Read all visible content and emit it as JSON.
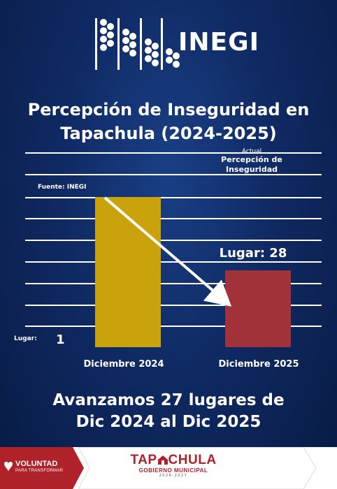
{
  "brand": {
    "logo_text": "INEGI"
  },
  "title": {
    "line1": "Percepción de Inseguridad en",
    "line2": "Tapachula (2024-2025)"
  },
  "chart_data": {
    "type": "bar",
    "categories": [
      "Diciembre 2024",
      "Diciembre 2025"
    ],
    "values": [
      1,
      28
    ],
    "colors": [
      "#c9a20c",
      "#a2323a"
    ],
    "source": "Fuente: INEGI",
    "annotations": {
      "caption_small": "Actual",
      "caption_main": "Percepción de",
      "caption_main2": "Inseguridad",
      "bar2_label": "Lugar: 28",
      "bar1_axis_label": "Lugar:",
      "bar1_value": "1"
    },
    "grid": true,
    "arrow": "from top of first bar down to second bar"
  },
  "footer": {
    "line1": "Avanzamos 27 lugares de",
    "line2": "Dic 2024 al Dic 2025"
  },
  "bottom": {
    "left_brand": "VOLUNTAD",
    "left_sub": "PARA TRANSFORMAR",
    "center_brand_a": "TAP",
    "center_brand_b": "CHULA",
    "center_sub": "GOBIERNO MUNICIPAL",
    "center_years": "2024-2027"
  }
}
